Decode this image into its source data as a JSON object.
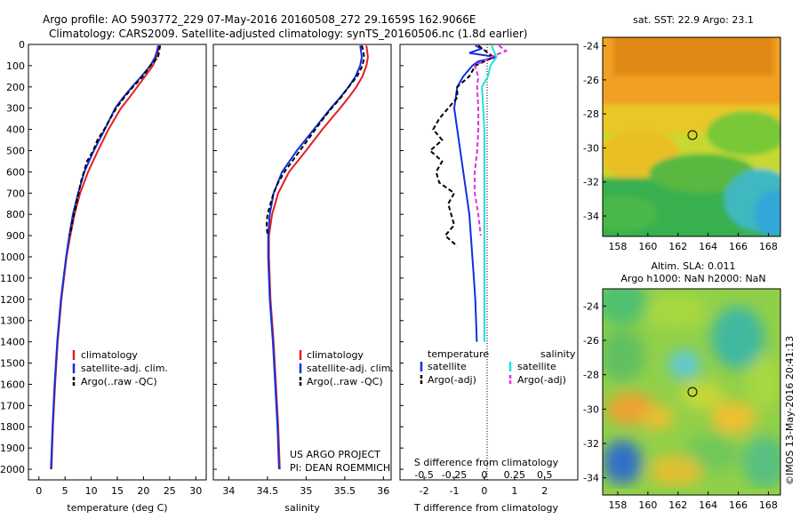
{
  "header": {
    "line1": "Argo profile: AO 5903772_229 07-May-2016 20160508_272 29.1659S 162.9066E",
    "line2": "Climatology: CARS2009. Satellite-adjusted climatology: synTS_20160506.nc (1.8d earlier)"
  },
  "credit": "©IMOS 13-May-2016 20:41:13",
  "chart_data": [
    {
      "type": "line",
      "id": "temperature",
      "xlabel": "temperature (deg C)",
      "xlim": [
        -2,
        32
      ],
      "ylim": [
        0,
        2050
      ],
      "yticks": [
        "0",
        "100",
        "200",
        "300",
        "400",
        "500",
        "600",
        "700",
        "800",
        "900",
        "1000",
        "1100",
        "1200",
        "1300",
        "1400",
        "1500",
        "1600",
        "1700",
        "1800",
        "1900",
        "2000"
      ],
      "xticks": [
        "0",
        "5",
        "10",
        "15",
        "20",
        "25",
        "30"
      ],
      "legend": [
        "climatology",
        "satellite-adj. clim.",
        "Argo(..raw -QC)"
      ],
      "series": [
        {
          "name": "climatology",
          "color": "#e02020",
          "depth": [
            5,
            30,
            60,
            100,
            150,
            200,
            250,
            300,
            400,
            500,
            600,
            700,
            800,
            900,
            1000,
            1200,
            1400,
            1600,
            1800,
            2000
          ],
          "values": [
            23.0,
            22.8,
            22.5,
            21.8,
            20.3,
            18.8,
            17.3,
            15.7,
            13.3,
            11.3,
            9.4,
            7.9,
            6.8,
            6.0,
            5.3,
            4.3,
            3.6,
            3.1,
            2.7,
            2.4
          ]
        },
        {
          "name": "satellite-adj. clim.",
          "color": "#1030e0",
          "depth": [
            5,
            30,
            60,
            100,
            150,
            200,
            250,
            300,
            400,
            500,
            600,
            700,
            800,
            900,
            1000,
            1200,
            1400,
            1600,
            1800,
            2000
          ],
          "values": [
            22.8,
            22.6,
            22.2,
            21.3,
            19.6,
            17.8,
            16.1,
            14.6,
            12.6,
            10.5,
            8.7,
            7.5,
            6.5,
            5.8,
            5.2,
            4.2,
            3.5,
            3.0,
            2.6,
            2.3
          ]
        },
        {
          "name": "Argo(..raw -QC)",
          "color": "#000000",
          "depth": [
            5,
            30,
            60,
            100,
            150,
            200,
            250,
            300,
            350,
            400,
            450,
            500,
            550,
            600,
            650,
            700,
            800,
            900
          ],
          "values": [
            23.2,
            23.0,
            22.8,
            21.3,
            19.9,
            18.0,
            16.3,
            14.8,
            13.6,
            12.5,
            11.2,
            10.4,
            9.2,
            8.6,
            8.0,
            7.6,
            6.7,
            5.9
          ]
        }
      ]
    },
    {
      "type": "line",
      "id": "salinity",
      "xlabel": "salinity",
      "xlim": [
        33.8,
        36.1
      ],
      "ylim": [
        0,
        2050
      ],
      "xticks": [
        "34",
        "34.5",
        "35",
        "35.5",
        "36"
      ],
      "legend": [
        "climatology",
        "satellite-adj. clim.",
        "Argo(..raw -QC)"
      ],
      "series": [
        {
          "name": "climatology",
          "color": "#e02020",
          "depth": [
            5,
            30,
            60,
            100,
            150,
            200,
            250,
            300,
            400,
            500,
            600,
            700,
            800,
            900,
            1000,
            1200,
            1400,
            1600,
            1800,
            2000
          ],
          "values": [
            35.78,
            35.79,
            35.8,
            35.78,
            35.73,
            35.65,
            35.55,
            35.44,
            35.21,
            35.0,
            34.78,
            34.64,
            34.56,
            34.52,
            34.52,
            34.54,
            34.58,
            34.61,
            34.64,
            34.66
          ]
        },
        {
          "name": "satellite-adj. clim.",
          "color": "#1030e0",
          "depth": [
            5,
            30,
            60,
            100,
            150,
            200,
            250,
            300,
            400,
            500,
            600,
            700,
            800,
            900,
            1000,
            1200,
            1400,
            1600,
            1800,
            2000
          ],
          "values": [
            35.7,
            35.71,
            35.72,
            35.7,
            35.64,
            35.55,
            35.44,
            35.32,
            35.1,
            34.88,
            34.69,
            34.58,
            34.53,
            34.51,
            34.51,
            34.53,
            34.57,
            34.6,
            34.63,
            34.65
          ]
        },
        {
          "name": "Argo(..raw -QC)",
          "color": "#000000",
          "depth": [
            5,
            30,
            60,
            100,
            150,
            200,
            250,
            300,
            350,
            400,
            450,
            500,
            550,
            600,
            650,
            700,
            750,
            800,
            850,
            900
          ],
          "values": [
            35.72,
            35.74,
            35.75,
            35.73,
            35.66,
            35.55,
            35.45,
            35.33,
            35.22,
            35.12,
            35.02,
            34.92,
            34.82,
            34.72,
            34.64,
            34.58,
            34.54,
            34.5,
            34.49,
            34.5
          ]
        }
      ],
      "annotation": [
        "US ARGO PROJECT",
        "PI: DEAN ROEMMICH"
      ]
    },
    {
      "type": "line",
      "id": "difference",
      "xlabel_top": "S difference from climatology",
      "xlabel": "T difference from climatology",
      "xlim": [
        -2.8,
        3.1
      ],
      "ylim": [
        0,
        2050
      ],
      "s_ticks": [
        "-0.5",
        "-0.25",
        "0",
        "0.25",
        "0.5"
      ],
      "s_tick_values": [
        -0.5,
        -0.25,
        0,
        0.25,
        0.5
      ],
      "t_ticks": [
        "-2",
        "-1",
        "0",
        "1",
        "2"
      ],
      "t_tick_values": [
        -2,
        -1,
        0,
        1,
        2
      ],
      "legend_titles": [
        "temperature",
        "salinity"
      ],
      "legend_left": [
        "satellite",
        "Argo(-adj)"
      ],
      "legend_right": [
        "satellite",
        "Argo(-adj)"
      ],
      "series": [
        {
          "name": "temperature satellite",
          "color": "#1030e0",
          "depth": [
            5,
            20,
            40,
            60,
            80,
            100,
            150,
            200,
            300,
            400,
            500,
            600,
            700,
            800,
            900,
            1000,
            1100,
            1200,
            1400
          ],
          "values": [
            -0.3,
            -0.1,
            -0.5,
            0.4,
            -0.2,
            -0.4,
            -0.7,
            -0.9,
            -1.0,
            -0.9,
            -0.8,
            -0.7,
            -0.6,
            -0.5,
            -0.45,
            -0.4,
            -0.35,
            -0.3,
            -0.25
          ]
        },
        {
          "name": "temperature Argo(-adj)",
          "color": "#000000",
          "depth": [
            5,
            60,
            100,
            150,
            200,
            250,
            300,
            350,
            400,
            450,
            500,
            550,
            600,
            650,
            700,
            750,
            800,
            850,
            900,
            950
          ],
          "values": [
            -0.2,
            0.3,
            -0.3,
            -0.5,
            -0.9,
            -0.9,
            -1.2,
            -1.5,
            -1.7,
            -1.4,
            -1.8,
            -1.4,
            -1.6,
            -1.5,
            -1.0,
            -1.2,
            -1.1,
            -1.0,
            -1.3,
            -0.9
          ]
        },
        {
          "name": "salinity satellite",
          "color": "#20e0e0",
          "depth": [
            5,
            60,
            100,
            150,
            200,
            300,
            400,
            500,
            600,
            700,
            800,
            900,
            1000,
            1200,
            1400
          ],
          "values": [
            0.06,
            0.1,
            0.05,
            0.03,
            -0.02,
            -0.01,
            0.0,
            0.0,
            0.0,
            0.0,
            0.0,
            0.0,
            0.0,
            0.0,
            0.0
          ]
        },
        {
          "name": "salinity Argo(-adj)",
          "color": "#e030e0",
          "depth": [
            5,
            30,
            60,
            100,
            150,
            200,
            300,
            400,
            500,
            600,
            700,
            800,
            900
          ],
          "values": [
            0.12,
            0.18,
            0.05,
            -0.08,
            -0.05,
            -0.06,
            -0.05,
            -0.05,
            -0.06,
            -0.08,
            -0.08,
            -0.05,
            -0.03
          ]
        }
      ]
    }
  ],
  "maps": {
    "sst_title": "sat. SST: 22.9 Argo: 23.1",
    "sla_title1": "Altim. SLA: 0.011",
    "sla_title2": "Argo h1000: NaN h2000: NaN",
    "lon_ticks": [
      "158",
      "160",
      "162",
      "164",
      "166",
      "168"
    ],
    "lat_ticks": [
      "-24",
      "-26",
      "-28",
      "-30",
      "-32",
      "-34"
    ],
    "float_position": {
      "lon": 162.9066,
      "lat": -29.1659
    }
  }
}
